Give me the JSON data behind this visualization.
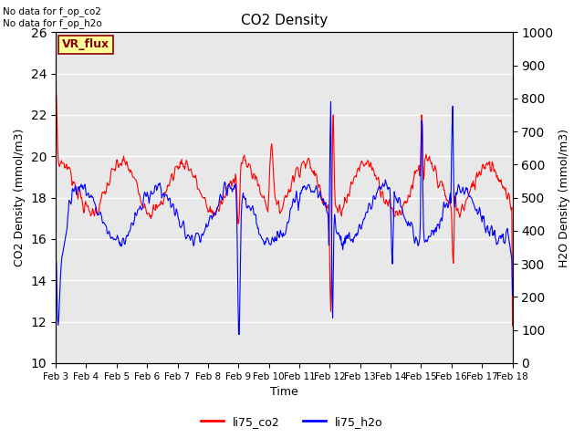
{
  "title": "CO2 Density",
  "xlabel": "Time",
  "ylabel_left": "CO2 Density (mmol/m3)",
  "ylabel_right": "H2O Density (mmol/m3)",
  "ylim_left": [
    10,
    26
  ],
  "ylim_right": [
    0,
    1000
  ],
  "yticks_left": [
    10,
    12,
    14,
    16,
    18,
    20,
    22,
    24,
    26
  ],
  "yticks_right": [
    0,
    100,
    200,
    300,
    400,
    500,
    600,
    700,
    800,
    900,
    1000
  ],
  "x_tick_labels": [
    "Feb 3",
    "Feb 4",
    "Feb 5",
    "Feb 6",
    "Feb 7",
    "Feb 8",
    "Feb 9",
    "Feb 10",
    "Feb 11",
    "Feb 12",
    "Feb 13",
    "Feb 14",
    "Feb 15",
    "Feb 16",
    "Feb 17",
    "Feb 18"
  ],
  "legend_labels": [
    "li75_co2",
    "li75_h2o"
  ],
  "top_left_text": "No data for f_op_co2\nNo data for f_op_h2o",
  "box_label": "VR_flux",
  "box_color": "#FFFF99",
  "box_border_color": "darkred",
  "background_color": "#e8e8e8",
  "grid_color": "white",
  "co2_color": "red",
  "h2o_color": "blue",
  "linewidth": 0.8
}
